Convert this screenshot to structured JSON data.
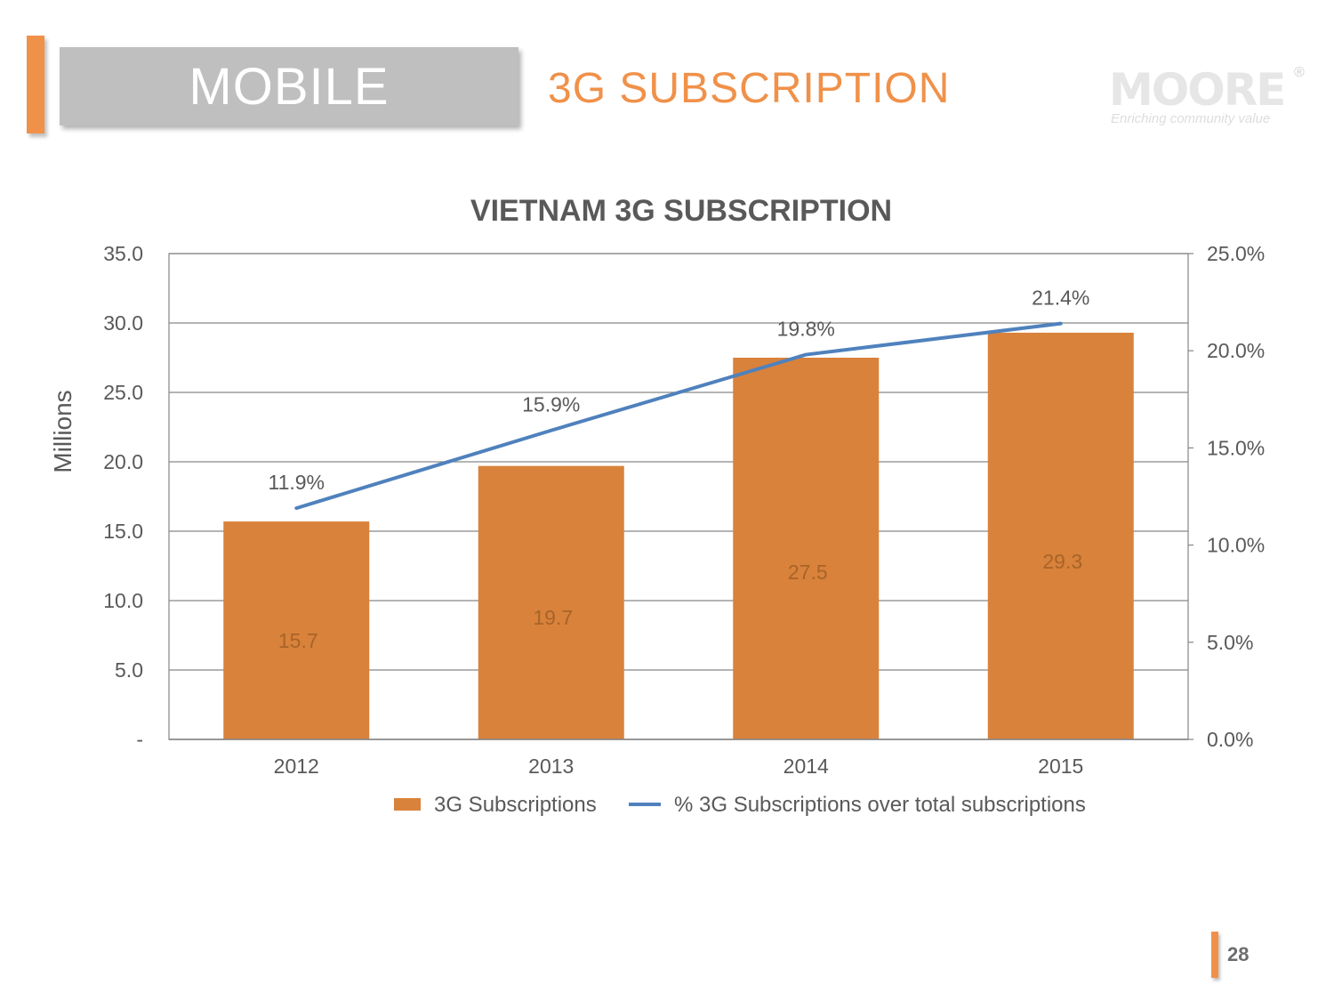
{
  "header": {
    "section_label": "MOBILE",
    "title": "3G SUBSCRIPTION"
  },
  "logo": {
    "name": "MOORE",
    "registered_mark": "®",
    "tagline": "Enriching community value"
  },
  "page_number": "28",
  "colors": {
    "accent": "#f0914a",
    "bar": "#d9823b",
    "line": "#4f81bd",
    "section_box": "#bfbfbf"
  },
  "chart_data": {
    "type": "bar",
    "title": "VIETNAM 3G SUBSCRIPTION",
    "ylabel": "Millions",
    "categories": [
      "2012",
      "2013",
      "2014",
      "2015"
    ],
    "series": [
      {
        "name": "3G Subscriptions",
        "type": "bar",
        "axis": "left",
        "values": [
          15.7,
          19.7,
          27.5,
          29.3
        ],
        "labels": [
          "15.7",
          "19.7",
          "27.5",
          "29.3"
        ]
      },
      {
        "name": "% 3G Subscriptions over total subscriptions",
        "type": "line",
        "axis": "right",
        "values": [
          11.9,
          15.9,
          19.8,
          21.4
        ],
        "labels": [
          "11.9%",
          "15.9%",
          "19.8%",
          "21.4%"
        ]
      }
    ],
    "ylim": [
      0,
      35
    ],
    "y_ticks": [
      "-",
      "5.0",
      "10.0",
      "15.0",
      "20.0",
      "25.0",
      "30.0",
      "35.0"
    ],
    "y2lim": [
      0,
      25
    ],
    "y2_ticks": [
      "0.0%",
      "5.0%",
      "10.0%",
      "15.0%",
      "20.0%",
      "25.0%"
    ],
    "grid": true,
    "legend_position": "bottom"
  }
}
